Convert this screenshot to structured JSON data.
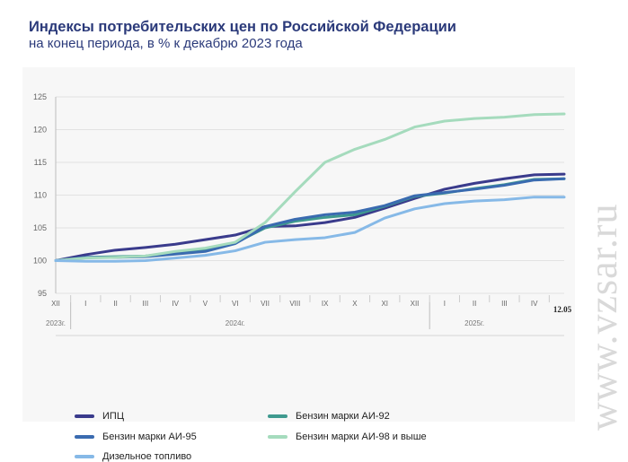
{
  "title": "Индексы потребительских цен по Российской Федерации",
  "subtitle": "на конец периода, в % к декабрю 2023 года",
  "watermark": "www.vzsar.ru",
  "chart_data": {
    "type": "line",
    "ylim": [
      95,
      125
    ],
    "y_ticks": [
      95,
      100,
      105,
      110,
      115,
      120,
      125
    ],
    "categories": [
      "XII",
      "I",
      "II",
      "III",
      "IV",
      "V",
      "VI",
      "VII",
      "VIII",
      "IX",
      "X",
      "XI",
      "XII",
      "I",
      "II",
      "III",
      "IV",
      "12.05"
    ],
    "year_labels": [
      {
        "label": "2023г.",
        "at": 0
      },
      {
        "label": "2024г.",
        "at": 6
      },
      {
        "label": "2025г.",
        "at": 14
      }
    ],
    "grid": true,
    "series": [
      {
        "name": "ИПЦ",
        "color": "#3a3b8c",
        "values": [
          100,
          100.9,
          101.6,
          102,
          102.5,
          103.2,
          103.9,
          105.2,
          105.3,
          105.8,
          106.6,
          108,
          109.5,
          110.9,
          111.8,
          112.5,
          113.1,
          113.2
        ]
      },
      {
        "name": "Бензин марки АИ-92",
        "color": "#3f9a8f",
        "values": [
          100,
          100.5,
          100.6,
          100.7,
          101.2,
          101.7,
          102.7,
          105,
          106,
          106.6,
          107,
          108.3,
          109.8,
          110.3,
          111,
          111.6,
          112.4,
          112.5
        ]
      },
      {
        "name": "Бензин марки АИ-95",
        "color": "#3a6bb0",
        "values": [
          100,
          100.5,
          100.5,
          100.6,
          101,
          101.4,
          102.6,
          105.2,
          106.3,
          107,
          107.4,
          108.4,
          109.9,
          110.4,
          110.9,
          111.5,
          112.3,
          112.5
        ]
      },
      {
        "name": "Бензин марки АИ-98 и выше",
        "color": "#a5dbbd",
        "values": [
          100,
          100.4,
          100.5,
          100.7,
          101.4,
          101.9,
          102.8,
          105.8,
          110.5,
          115,
          117,
          118.5,
          120.4,
          121.3,
          121.7,
          121.9,
          122.3,
          122.4
        ]
      },
      {
        "name": "Дизельное топливо",
        "color": "#86b9e7",
        "values": [
          100,
          99.9,
          99.9,
          100,
          100.4,
          100.8,
          101.5,
          102.8,
          103.2,
          103.5,
          104.3,
          106.5,
          107.9,
          108.7,
          109.1,
          109.3,
          109.7,
          109.7
        ]
      }
    ]
  }
}
